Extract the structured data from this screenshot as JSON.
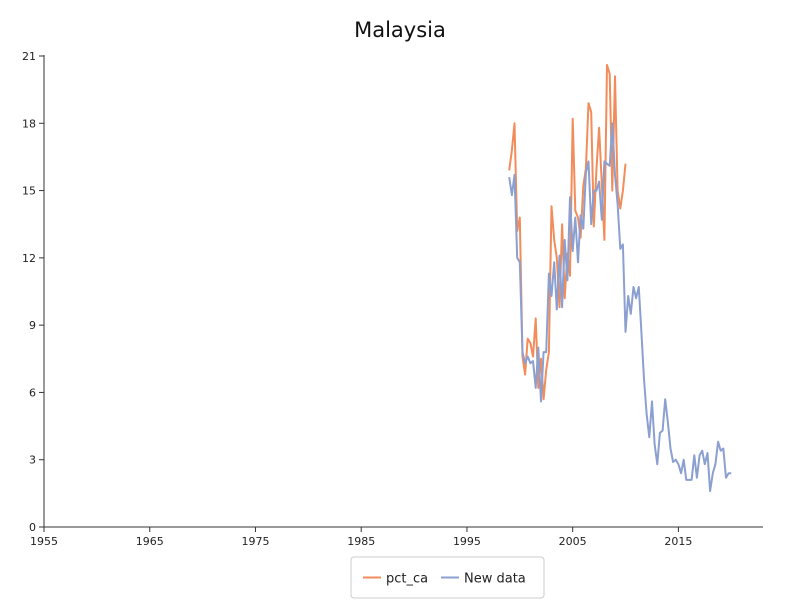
{
  "chart_data": {
    "type": "line",
    "title": "Malaysia",
    "xlabel": "",
    "ylabel": "",
    "xlim": [
      1955,
      2023
    ],
    "ylim": [
      0,
      21
    ],
    "xticks": [
      1955,
      1965,
      1975,
      1985,
      1995,
      2005,
      2015
    ],
    "yticks": [
      0,
      3,
      6,
      9,
      12,
      15,
      18,
      21
    ],
    "grid": false,
    "legend_position": "bottom",
    "series": [
      {
        "name": "pct_ca",
        "color": "#f28c5a",
        "x": [
          1999.0,
          1999.25,
          1999.5,
          1999.75,
          2000.0,
          2000.25,
          2000.5,
          2000.75,
          2001.0,
          2001.25,
          2001.5,
          2001.75,
          2002.0,
          2002.25,
          2002.5,
          2002.75,
          2003.0,
          2003.25,
          2003.5,
          2003.75,
          2004.0,
          2004.25,
          2004.5,
          2004.75,
          2005.0,
          2005.25,
          2005.5,
          2005.75,
          2006.0,
          2006.25,
          2006.5,
          2006.75,
          2007.0,
          2007.25,
          2007.5,
          2007.75,
          2008.0,
          2008.25,
          2008.5,
          2008.75,
          2009.0,
          2009.25,
          2009.5,
          2009.75,
          2010.0
        ],
        "y": [
          15.9,
          16.8,
          18.0,
          13.2,
          13.8,
          7.6,
          6.8,
          8.4,
          8.2,
          7.6,
          9.3,
          6.2,
          7.5,
          5.7,
          7.0,
          7.8,
          14.3,
          12.8,
          12.0,
          9.8,
          13.5,
          10.2,
          12.2,
          11.2,
          18.2,
          14.1,
          13.8,
          12.9,
          15.2,
          16.0,
          18.9,
          18.5,
          13.4,
          16.0,
          17.8,
          15.3,
          12.8,
          20.6,
          20.2,
          15.0,
          20.1,
          15.0,
          14.2,
          15.0,
          16.2
        ]
      },
      {
        "name": "New data",
        "color": "#8b9fd0",
        "x": [
          1999.0,
          1999.25,
          1999.5,
          1999.75,
          2000.0,
          2000.25,
          2000.5,
          2000.75,
          2001.0,
          2001.25,
          2001.5,
          2001.75,
          2002.0,
          2002.25,
          2002.5,
          2002.75,
          2003.0,
          2003.25,
          2003.5,
          2003.75,
          2004.0,
          2004.25,
          2004.5,
          2004.75,
          2005.0,
          2005.25,
          2005.5,
          2005.75,
          2006.0,
          2006.25,
          2006.5,
          2006.75,
          2007.0,
          2007.25,
          2007.5,
          2007.75,
          2008.0,
          2008.25,
          2008.5,
          2008.75,
          2009.0,
          2009.25,
          2009.5,
          2009.75,
          2010.0,
          2010.25,
          2010.5,
          2010.75,
          2011.0,
          2011.25,
          2011.5,
          2011.75,
          2012.0,
          2012.25,
          2012.5,
          2012.75,
          2013.0,
          2013.25,
          2013.5,
          2013.75,
          2014.0,
          2014.25,
          2014.5,
          2014.75,
          2015.0,
          2015.25,
          2015.5,
          2015.75,
          2016.0,
          2016.25,
          2016.5,
          2016.75,
          2017.0,
          2017.25,
          2017.5,
          2017.75,
          2018.0,
          2018.25,
          2018.5,
          2018.75,
          2019.0,
          2019.25,
          2019.5,
          2019.75,
          2020.0
        ],
        "y": [
          15.6,
          14.8,
          15.7,
          12.0,
          11.8,
          7.8,
          7.3,
          7.6,
          7.3,
          7.4,
          6.2,
          8.0,
          5.6,
          7.8,
          7.8,
          11.3,
          10.3,
          11.8,
          9.7,
          12.1,
          9.8,
          12.8,
          11.0,
          14.7,
          12.3,
          13.8,
          11.8,
          13.9,
          13.3,
          15.8,
          16.3,
          13.5,
          15.0,
          15.0,
          15.4,
          13.7,
          16.3,
          16.2,
          16.1,
          18.0,
          15.7,
          14.4,
          12.4,
          12.6,
          8.7,
          10.3,
          9.5,
          10.7,
          10.2,
          10.7,
          8.7,
          6.6,
          5.0,
          4.0,
          5.6,
          3.7,
          2.8,
          4.2,
          4.3,
          5.7,
          4.7,
          3.5,
          2.9,
          3.0,
          2.8,
          2.4,
          3.0,
          2.1,
          2.1,
          2.1,
          3.2,
          2.2,
          3.2,
          3.4,
          2.8,
          3.3,
          1.6,
          2.4,
          2.8,
          3.8,
          3.4,
          3.5,
          2.2,
          2.4,
          2.4
        ]
      }
    ]
  }
}
